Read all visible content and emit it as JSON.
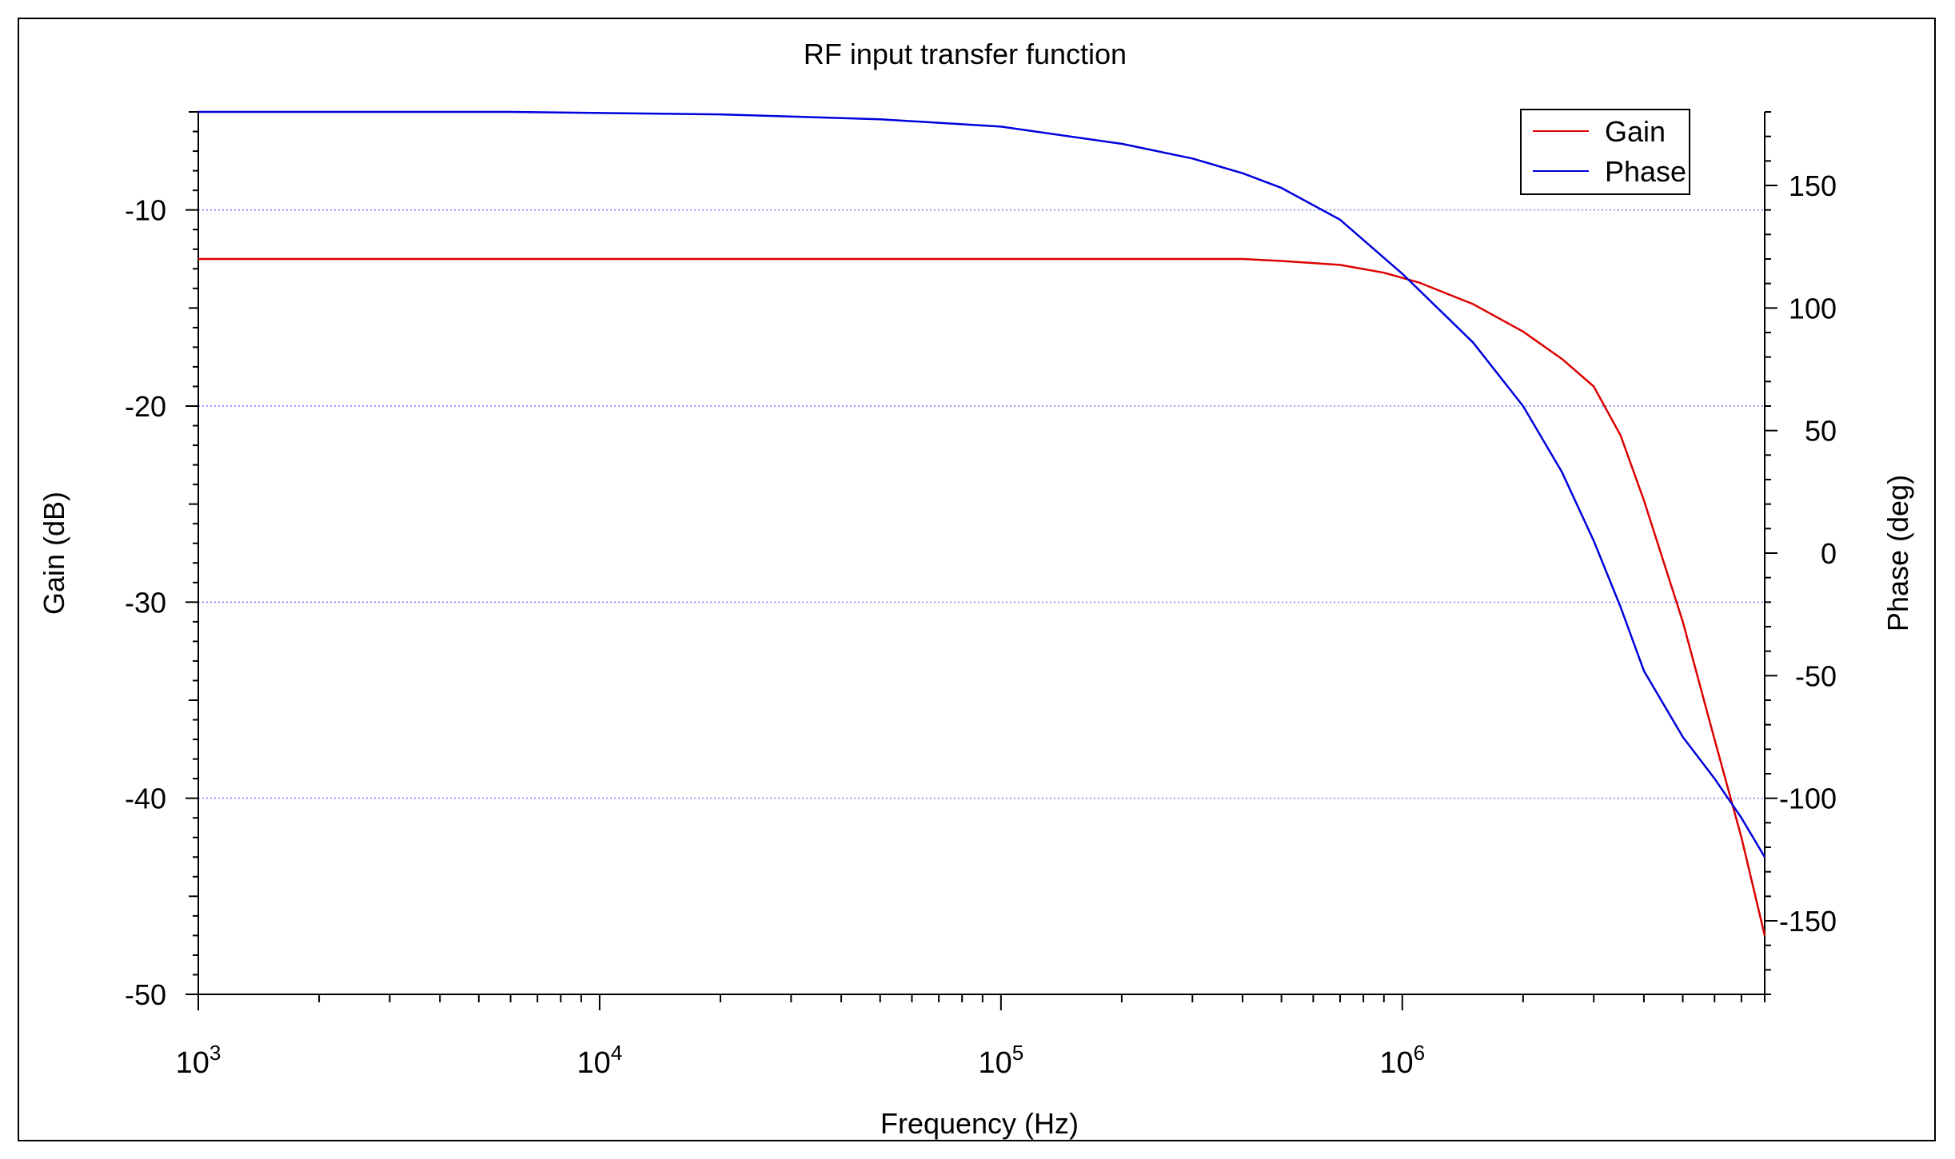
{
  "chart_data": {
    "type": "line",
    "title": "RF input transfer function",
    "xlabel": "Frequency (Hz)",
    "ylabel": "Gain (dB)",
    "y2label": "Phase (deg)",
    "xscale": "log",
    "xlim": [
      1000,
      8000000
    ],
    "ylim": [
      -50,
      -5
    ],
    "y2lim": [
      -180,
      180
    ],
    "x_ticks": [
      {
        "base": "10",
        "exp": "3",
        "value": 1000
      },
      {
        "base": "10",
        "exp": "4",
        "value": 10000
      },
      {
        "base": "10",
        "exp": "5",
        "value": 100000
      },
      {
        "base": "10",
        "exp": "6",
        "value": 1000000
      }
    ],
    "y_ticks": [
      "-10",
      "-20",
      "-30",
      "-40",
      "-50"
    ],
    "y_tick_values": [
      -10,
      -20,
      -30,
      -40,
      -50
    ],
    "y2_ticks": [
      "150",
      "100",
      "50",
      "0",
      "-50",
      "-100",
      "-150"
    ],
    "y2_tick_values": [
      150,
      100,
      50,
      0,
      -50,
      -100,
      -150
    ],
    "grid": "horizontal dotted",
    "legend_position": "top-right",
    "series": [
      {
        "name": "Gain",
        "axis": "left",
        "color": "#dd0000",
        "x": [
          1000,
          10000,
          100000,
          400000,
          500000,
          700000,
          900000,
          1100000,
          1500000,
          2000000,
          2500000,
          3000000,
          3500000,
          4000000,
          5000000,
          6000000,
          7000000,
          8000000
        ],
        "y": [
          -12.5,
          -12.5,
          -12.5,
          -12.5,
          -12.6,
          -12.8,
          -13.2,
          -13.7,
          -14.8,
          -16.2,
          -17.6,
          -19.0,
          -21.5,
          -24.8,
          -31.0,
          -37.0,
          -42.0,
          -47.0
        ]
      },
      {
        "name": "Phase",
        "axis": "right",
        "color": "#0000dd",
        "x": [
          1000,
          6000,
          20000,
          50000,
          100000,
          200000,
          300000,
          400000,
          500000,
          700000,
          1000000,
          1500000,
          2000000,
          2500000,
          3000000,
          3500000,
          4000000,
          5000000,
          6000000,
          7000000,
          8000000
        ],
        "y": [
          180,
          180,
          179,
          177,
          174,
          167,
          161,
          155,
          149,
          136,
          114,
          86,
          60,
          33,
          5,
          -22,
          -48,
          -75,
          -92,
          -108,
          -124
        ]
      }
    ]
  }
}
